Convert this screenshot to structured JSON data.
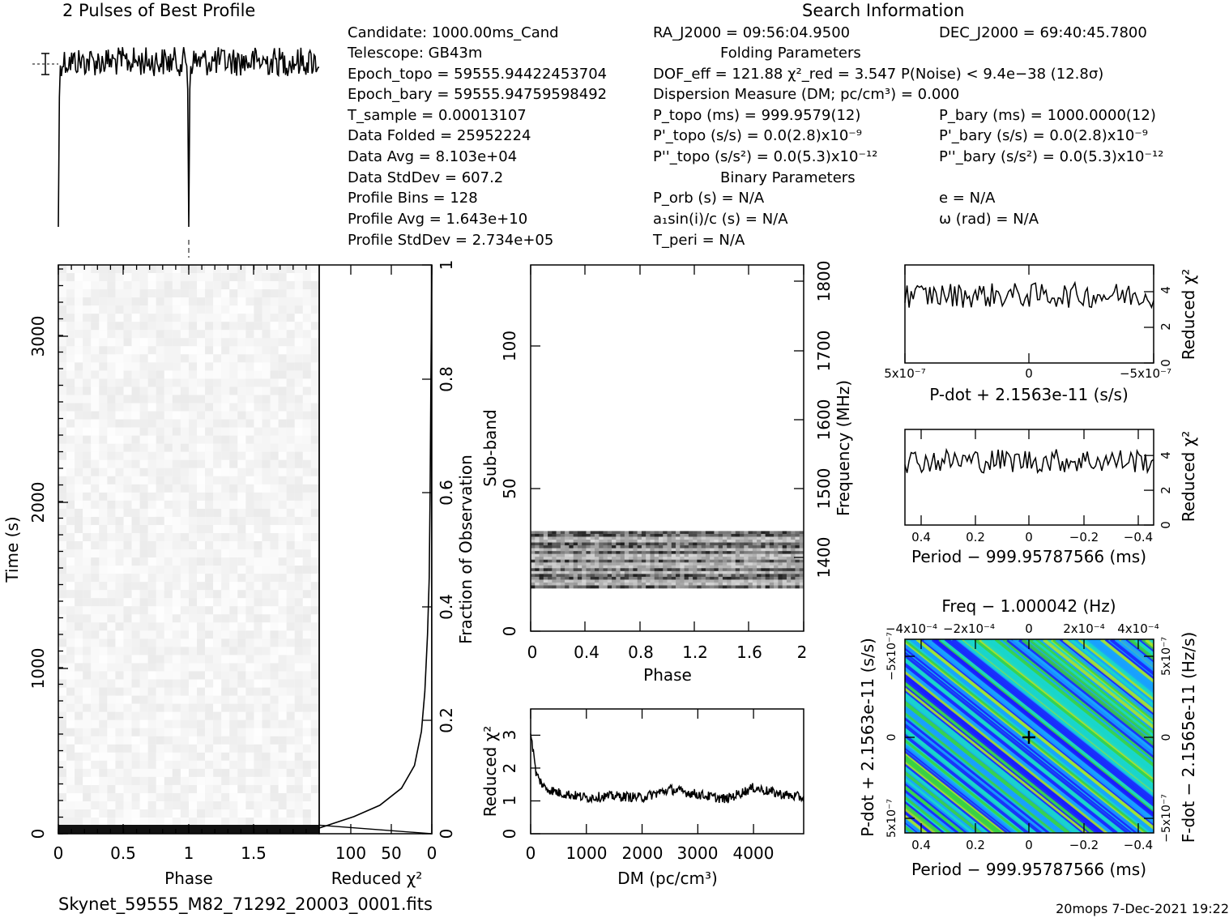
{
  "header": {
    "title": "2 Pulses of Best Profile",
    "search_title": "Search Information",
    "filename": "Skynet_59555_M82_71292_20003_0001.fits",
    "footer_right": "20mops  7-Dec-2021 19:22"
  },
  "candidate_info": [
    "Candidate:  1000.00ms_Cand",
    "Telescope:  GB43m",
    "Epoch_topo = 59555.94422453704",
    "Epoch_bary = 59555.94759598492",
    "T_sample       =  0.00013107",
    "Data Folded    =  25952224",
    "Data Avg       =  8.103e+04",
    "Data StdDev    =  607.2",
    "Profile Bins   =  128",
    "Profile Avg    =  1.643e+10",
    "Profile StdDev =  2.734e+05"
  ],
  "position": {
    "ra": "RA_J2000 = 09:56:04.9500",
    "dec": "DEC_J2000 = 69:40:45.7800"
  },
  "folding": {
    "title": "Folding Parameters",
    "dof": "DOF_eff = 121.88  χ²_red = 3.547  P(Noise) < 9.4e−38  (12.8σ)",
    "dm": "Dispersion Measure (DM; pc/cm³) = 0.000",
    "p_topo": "P_topo (ms) =  999.9579(12)",
    "p_bary": "P_bary (ms) =  1000.0000(12)",
    "pd_topo": "P'_topo (s/s) = 0.0(2.8)x10⁻⁹",
    "pd_bary": "P'_bary (s/s) = 0.0(2.8)x10⁻⁹",
    "pdd_topo": "P''_topo (s/s²) = 0.0(5.3)x10⁻¹²",
    "pdd_bary": "P''_bary (s/s²) = 0.0(5.3)x10⁻¹²"
  },
  "binary": {
    "title": "Binary Parameters",
    "porb": "P_orb (s) = N/A",
    "e": "e = N/A",
    "asini": "a₁sin(i)/c (s) = N/A",
    "omega": "ω (rad) = N/A",
    "tperi": "T_peri = N/A"
  },
  "chart_data": [
    {
      "id": "profile",
      "type": "line",
      "title": "2 Pulses of Best Profile",
      "x_range": [
        0,
        2
      ],
      "description_values": {
        "dips_at_phase": [
          0.0,
          1.0
        ]
      }
    },
    {
      "id": "time_phase",
      "type": "heatmap",
      "xlabel": "Phase",
      "ylabel": "Time (s)",
      "xlim": [
        0,
        2
      ],
      "ylim": [
        0,
        3400
      ],
      "x_ticks": [
        "0",
        "0.5",
        "1",
        "1.5"
      ],
      "y_ticks": [
        "0",
        "1000",
        "2000",
        "3000"
      ]
    },
    {
      "id": "chi_vs_time",
      "type": "line",
      "xlabel": "Reduced χ²",
      "ylabel": "Fraction of Observation",
      "x_ticks": [
        "100",
        "50",
        "0"
      ],
      "y_ticks": [
        "0",
        "0.2",
        "0.4",
        "0.6",
        "0.8",
        "1"
      ],
      "xlim": [
        130,
        0
      ],
      "ylim": [
        0,
        1
      ],
      "points": [
        [
          0,
          1.0
        ],
        [
          1,
          0.8
        ],
        [
          2,
          0.6
        ],
        [
          3,
          0.45
        ],
        [
          5,
          0.35
        ],
        [
          8,
          0.25
        ],
        [
          12,
          0.18
        ],
        [
          20,
          0.12
        ],
        [
          35,
          0.08
        ],
        [
          60,
          0.05
        ],
        [
          90,
          0.03
        ],
        [
          130,
          0.01
        ]
      ]
    },
    {
      "id": "subband",
      "type": "heatmap",
      "xlabel": "Phase",
      "ylabel": "Sub-band",
      "y2label": "Frequency (MHz)",
      "xlim": [
        0,
        2
      ],
      "ylim": [
        0,
        128
      ],
      "x_ticks": [
        "0",
        "0.4",
        "0.8",
        "1.2",
        "1.6",
        "2"
      ],
      "y_ticks": [
        "0",
        "50",
        "100"
      ],
      "y2_ticks": [
        "1400",
        "1500",
        "1600",
        "1700",
        "1800"
      ],
      "populated_subbands": [
        15,
        35
      ]
    },
    {
      "id": "dm",
      "type": "line",
      "xlabel": "DM (pc/cm³)",
      "ylabel": "Reduced χ²",
      "xlim": [
        0,
        4900
      ],
      "ylim": [
        0,
        3.8
      ],
      "x_ticks": [
        "0",
        "1000",
        "2000",
        "3000",
        "4000"
      ],
      "y_ticks": [
        "0",
        "1",
        "2",
        "3"
      ],
      "x": [
        0,
        100,
        250,
        500,
        1000,
        1500,
        2000,
        2500,
        3000,
        3500,
        4000,
        4500,
        4900
      ],
      "y": [
        3.1,
        1.8,
        1.4,
        1.25,
        1.1,
        1.15,
        1.1,
        1.35,
        1.2,
        1.05,
        1.4,
        1.2,
        1.1
      ]
    },
    {
      "id": "pdot",
      "type": "line",
      "xlabel": "P-dot + 2.1563e-11 (s/s)",
      "ylabel": "Reduced χ²",
      "x_ticks": [
        "5x10⁻⁷",
        "0",
        "−5x10⁻⁷"
      ],
      "y_ticks": [
        "0",
        "2",
        "4"
      ],
      "ylim": [
        0,
        5.5
      ],
      "mean": 3.8
    },
    {
      "id": "period",
      "type": "line",
      "xlabel": "Period − 999.95787566 (ms)",
      "ylabel": "Reduced χ²",
      "x_ticks": [
        "0.4",
        "0.2",
        "0",
        "−0.2",
        "−0.4"
      ],
      "y_ticks": [
        "0",
        "2",
        "4"
      ],
      "ylim": [
        0,
        5.5
      ],
      "mean": 3.7
    },
    {
      "id": "ppdot",
      "type": "heatmap",
      "title": "Freq − 1.000042 (Hz)",
      "xlabel": "Period − 999.95787566 (ms)",
      "ylabel": "P-dot + 2.1563e-11 (s/s)",
      "y2label": "F-dot − 2.1565e-11 (Hz/s)",
      "x_ticks": [
        "0.4",
        "0.2",
        "0",
        "−0.2",
        "−0.4"
      ],
      "top_ticks": [
        "−4x10⁻⁴",
        "−2x10⁻⁴",
        "0",
        "2x10⁻⁴",
        "4x10⁻⁴"
      ],
      "y_ticks": [
        "5x10⁻⁷",
        "0",
        "−5x10⁻⁷"
      ],
      "y2_ticks": [
        "−5x10⁻⁷",
        "0",
        "5x10⁻⁷"
      ],
      "colors": [
        "#1a1aff",
        "#19a0ff",
        "#1ad8c8",
        "#3cd23c",
        "#b4e61e"
      ]
    }
  ]
}
